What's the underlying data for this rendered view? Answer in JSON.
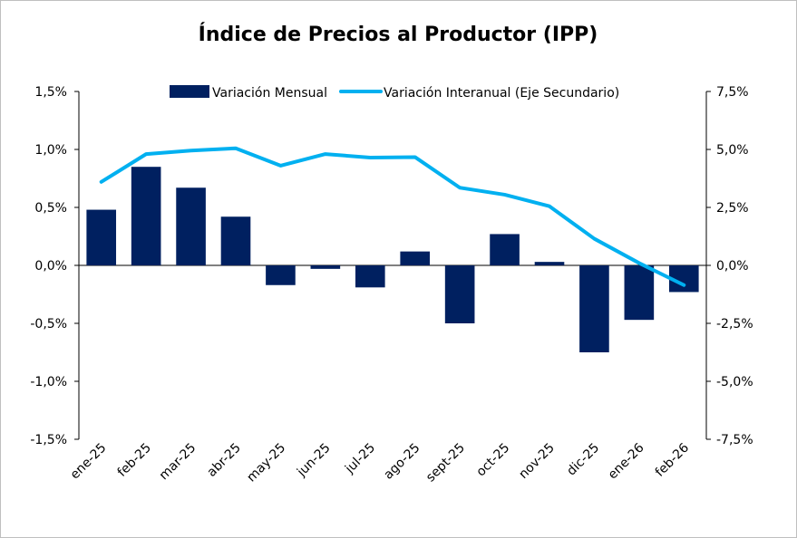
{
  "chart_data": {
    "type": "bar+line",
    "title": "Índice de Precios al Productor (IPP)",
    "categories": [
      "ene-25",
      "feb-25",
      "mar-25",
      "abr-25",
      "may-25",
      "jun-25",
      "jul-25",
      "ago-25",
      "sept-25",
      "oct-25",
      "nov-25",
      "dic-25",
      "ene-26",
      "feb-26"
    ],
    "series": [
      {
        "name": "Variación Mensual",
        "type": "bar",
        "axis": "primary",
        "color": "#002060",
        "values": [
          0.48,
          0.85,
          0.67,
          0.42,
          -0.17,
          -0.03,
          -0.19,
          0.12,
          -0.5,
          0.27,
          0.03,
          -0.75,
          -0.47,
          -0.23
        ]
      },
      {
        "name": "Variación Interanual (Eje Secundario)",
        "type": "line",
        "axis": "secondary",
        "color": "#00B0F0",
        "values": [
          3.6,
          4.8,
          4.95,
          5.05,
          4.3,
          4.8,
          4.65,
          4.67,
          3.35,
          3.05,
          2.55,
          1.15,
          0.1,
          -0.85
        ]
      }
    ],
    "y_primary": {
      "min": -1.5,
      "max": 1.5,
      "ticks": [
        1.5,
        1.0,
        0.5,
        0.0,
        -0.5,
        -1.0,
        -1.5
      ],
      "tick_labels": [
        "1,5%",
        "1,0%",
        "0,5%",
        "0,0%",
        "-0,5%",
        "-1,0%",
        "-1,5%"
      ]
    },
    "y_secondary": {
      "min": -7.5,
      "max": 7.5,
      "ticks": [
        7.5,
        5.0,
        2.5,
        0.0,
        -2.5,
        -5.0,
        -7.5
      ],
      "tick_labels": [
        "7,5%",
        "5,0%",
        "2,5%",
        "0,0%",
        "-2,5%",
        "-5,0%",
        "-7,5%"
      ]
    },
    "legend_position": "top-center",
    "grid": false
  }
}
